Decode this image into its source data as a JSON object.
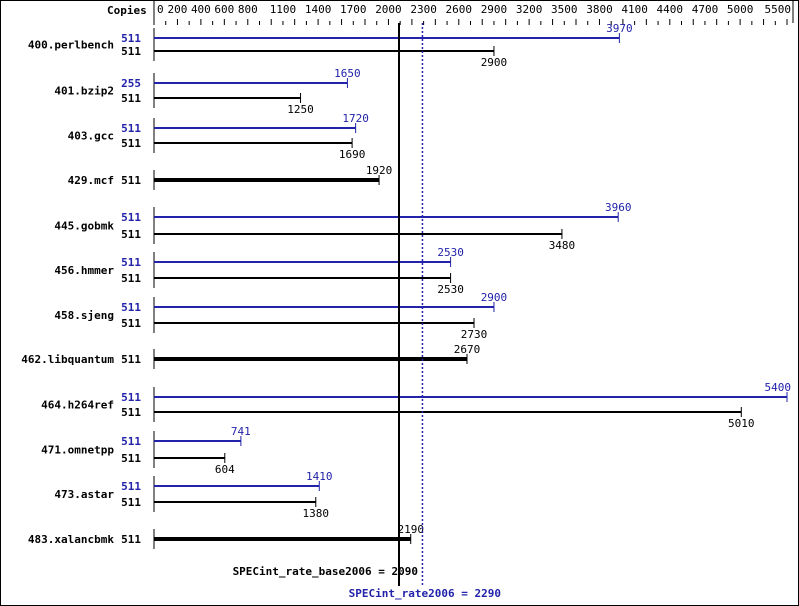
{
  "chart_data": {
    "type": "bar",
    "orientation": "horizontal",
    "axis_label": "Copies",
    "xlim": [
      0,
      5500
    ],
    "tick_labels": [
      0,
      200,
      400,
      600,
      800,
      1100,
      1400,
      1700,
      2000,
      2300,
      2600,
      2900,
      3200,
      3500,
      3800,
      4100,
      4400,
      4700,
      5000,
      5500
    ],
    "colors": {
      "base": "#000000",
      "peak": "#2222aa"
    },
    "benchmarks": [
      {
        "name": "400.perlbench",
        "peak_copies": "511",
        "peak": 3970,
        "base_copies": "511",
        "base": 2900
      },
      {
        "name": "401.bzip2",
        "peak_copies": "255",
        "peak": 1650,
        "base_copies": "511",
        "base": 1250
      },
      {
        "name": "403.gcc",
        "peak_copies": "511",
        "peak": 1720,
        "base_copies": "511",
        "base": 1690
      },
      {
        "name": "429.mcf",
        "copies": "511",
        "value": 1920
      },
      {
        "name": "445.gobmk",
        "peak_copies": "511",
        "peak": 3960,
        "base_copies": "511",
        "base": 3480
      },
      {
        "name": "456.hmmer",
        "peak_copies": "511",
        "peak": 2530,
        "base_copies": "511",
        "base": 2530
      },
      {
        "name": "458.sjeng",
        "peak_copies": "511",
        "peak": 2900,
        "base_copies": "511",
        "base": 2730
      },
      {
        "name": "462.libquantum",
        "copies": "511",
        "value": 2670
      },
      {
        "name": "464.h264ref",
        "peak_copies": "511",
        "peak": 5400,
        "base_copies": "511",
        "base": 5010
      },
      {
        "name": "471.omnetpp",
        "peak_copies": "511",
        "peak": 741,
        "base_copies": "511",
        "base": 604
      },
      {
        "name": "473.astar",
        "peak_copies": "511",
        "peak": 1410,
        "base_copies": "511",
        "base": 1380
      },
      {
        "name": "483.xalancbmk",
        "copies": "511",
        "value": 2190
      }
    ],
    "base_summary": {
      "label": "SPECint_rate_base2006 = 2090",
      "value": 2090
    },
    "peak_summary": {
      "label": "SPECint_rate2006 = 2290",
      "value": 2290
    }
  }
}
